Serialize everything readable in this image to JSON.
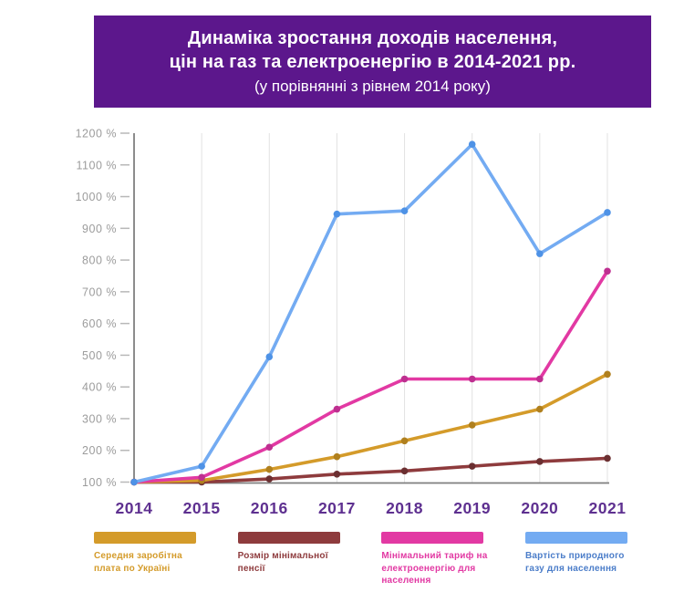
{
  "header": {
    "title_line1": "Динаміка зростання доходів населення,",
    "title_line2": "цін на газ та електроенергію в 2014-2021 рр.",
    "subtitle": "(у порівнянні з рівнем 2014 року)",
    "bg_color": "#5C178C",
    "text_color": "#FFFFFF"
  },
  "chart_data": {
    "type": "line",
    "title": "Динаміка зростання доходів населення, цін на газ та електроенергію в 2014-2021 рр. (у порівнянні з рівнем 2014 року)",
    "categories": [
      "2014",
      "2015",
      "2016",
      "2017",
      "2018",
      "2019",
      "2020",
      "2021"
    ],
    "series": [
      {
        "name": "Середня заробітна плата по Україні",
        "values": [
          100,
          105,
          140,
          180,
          230,
          280,
          330,
          440
        ],
        "color": "#D49B2A",
        "point_color": "#B0801E",
        "label_color": "#D49B2A"
      },
      {
        "name": "Розмір мінімальної пенсії",
        "values": [
          100,
          100,
          110,
          125,
          135,
          150,
          165,
          175
        ],
        "color": "#8E3B3D",
        "point_color": "#6B2F31",
        "label_color": "#8E3B3D"
      },
      {
        "name": "Мінімальний тариф на електроенергію для населення",
        "values": [
          100,
          115,
          210,
          330,
          425,
          425,
          425,
          765
        ],
        "color": "#E239A3",
        "point_color": "#BE2F90",
        "label_color": "#E239A3"
      },
      {
        "name": "Вартість природного газу для населення",
        "values": [
          100,
          150,
          495,
          945,
          955,
          1165,
          820,
          950
        ],
        "color": "#73ABF2",
        "point_color": "#4E92E6",
        "label_color": "#4B7DC9"
      }
    ],
    "yticks": [
      100,
      200,
      300,
      400,
      500,
      600,
      700,
      800,
      900,
      1000,
      1100,
      1200
    ],
    "ytick_suffix": " %",
    "ylim": [
      100,
      1200
    ],
    "grid": "vertical-only",
    "legend_position": "bottom",
    "axis_color": "#7F7F7F",
    "grid_color": "#E2E2E2",
    "tick_color": "#B8B8B8",
    "ytick_label_color": "#9C9C9C",
    "xtick_label_color": "#5E3090"
  }
}
